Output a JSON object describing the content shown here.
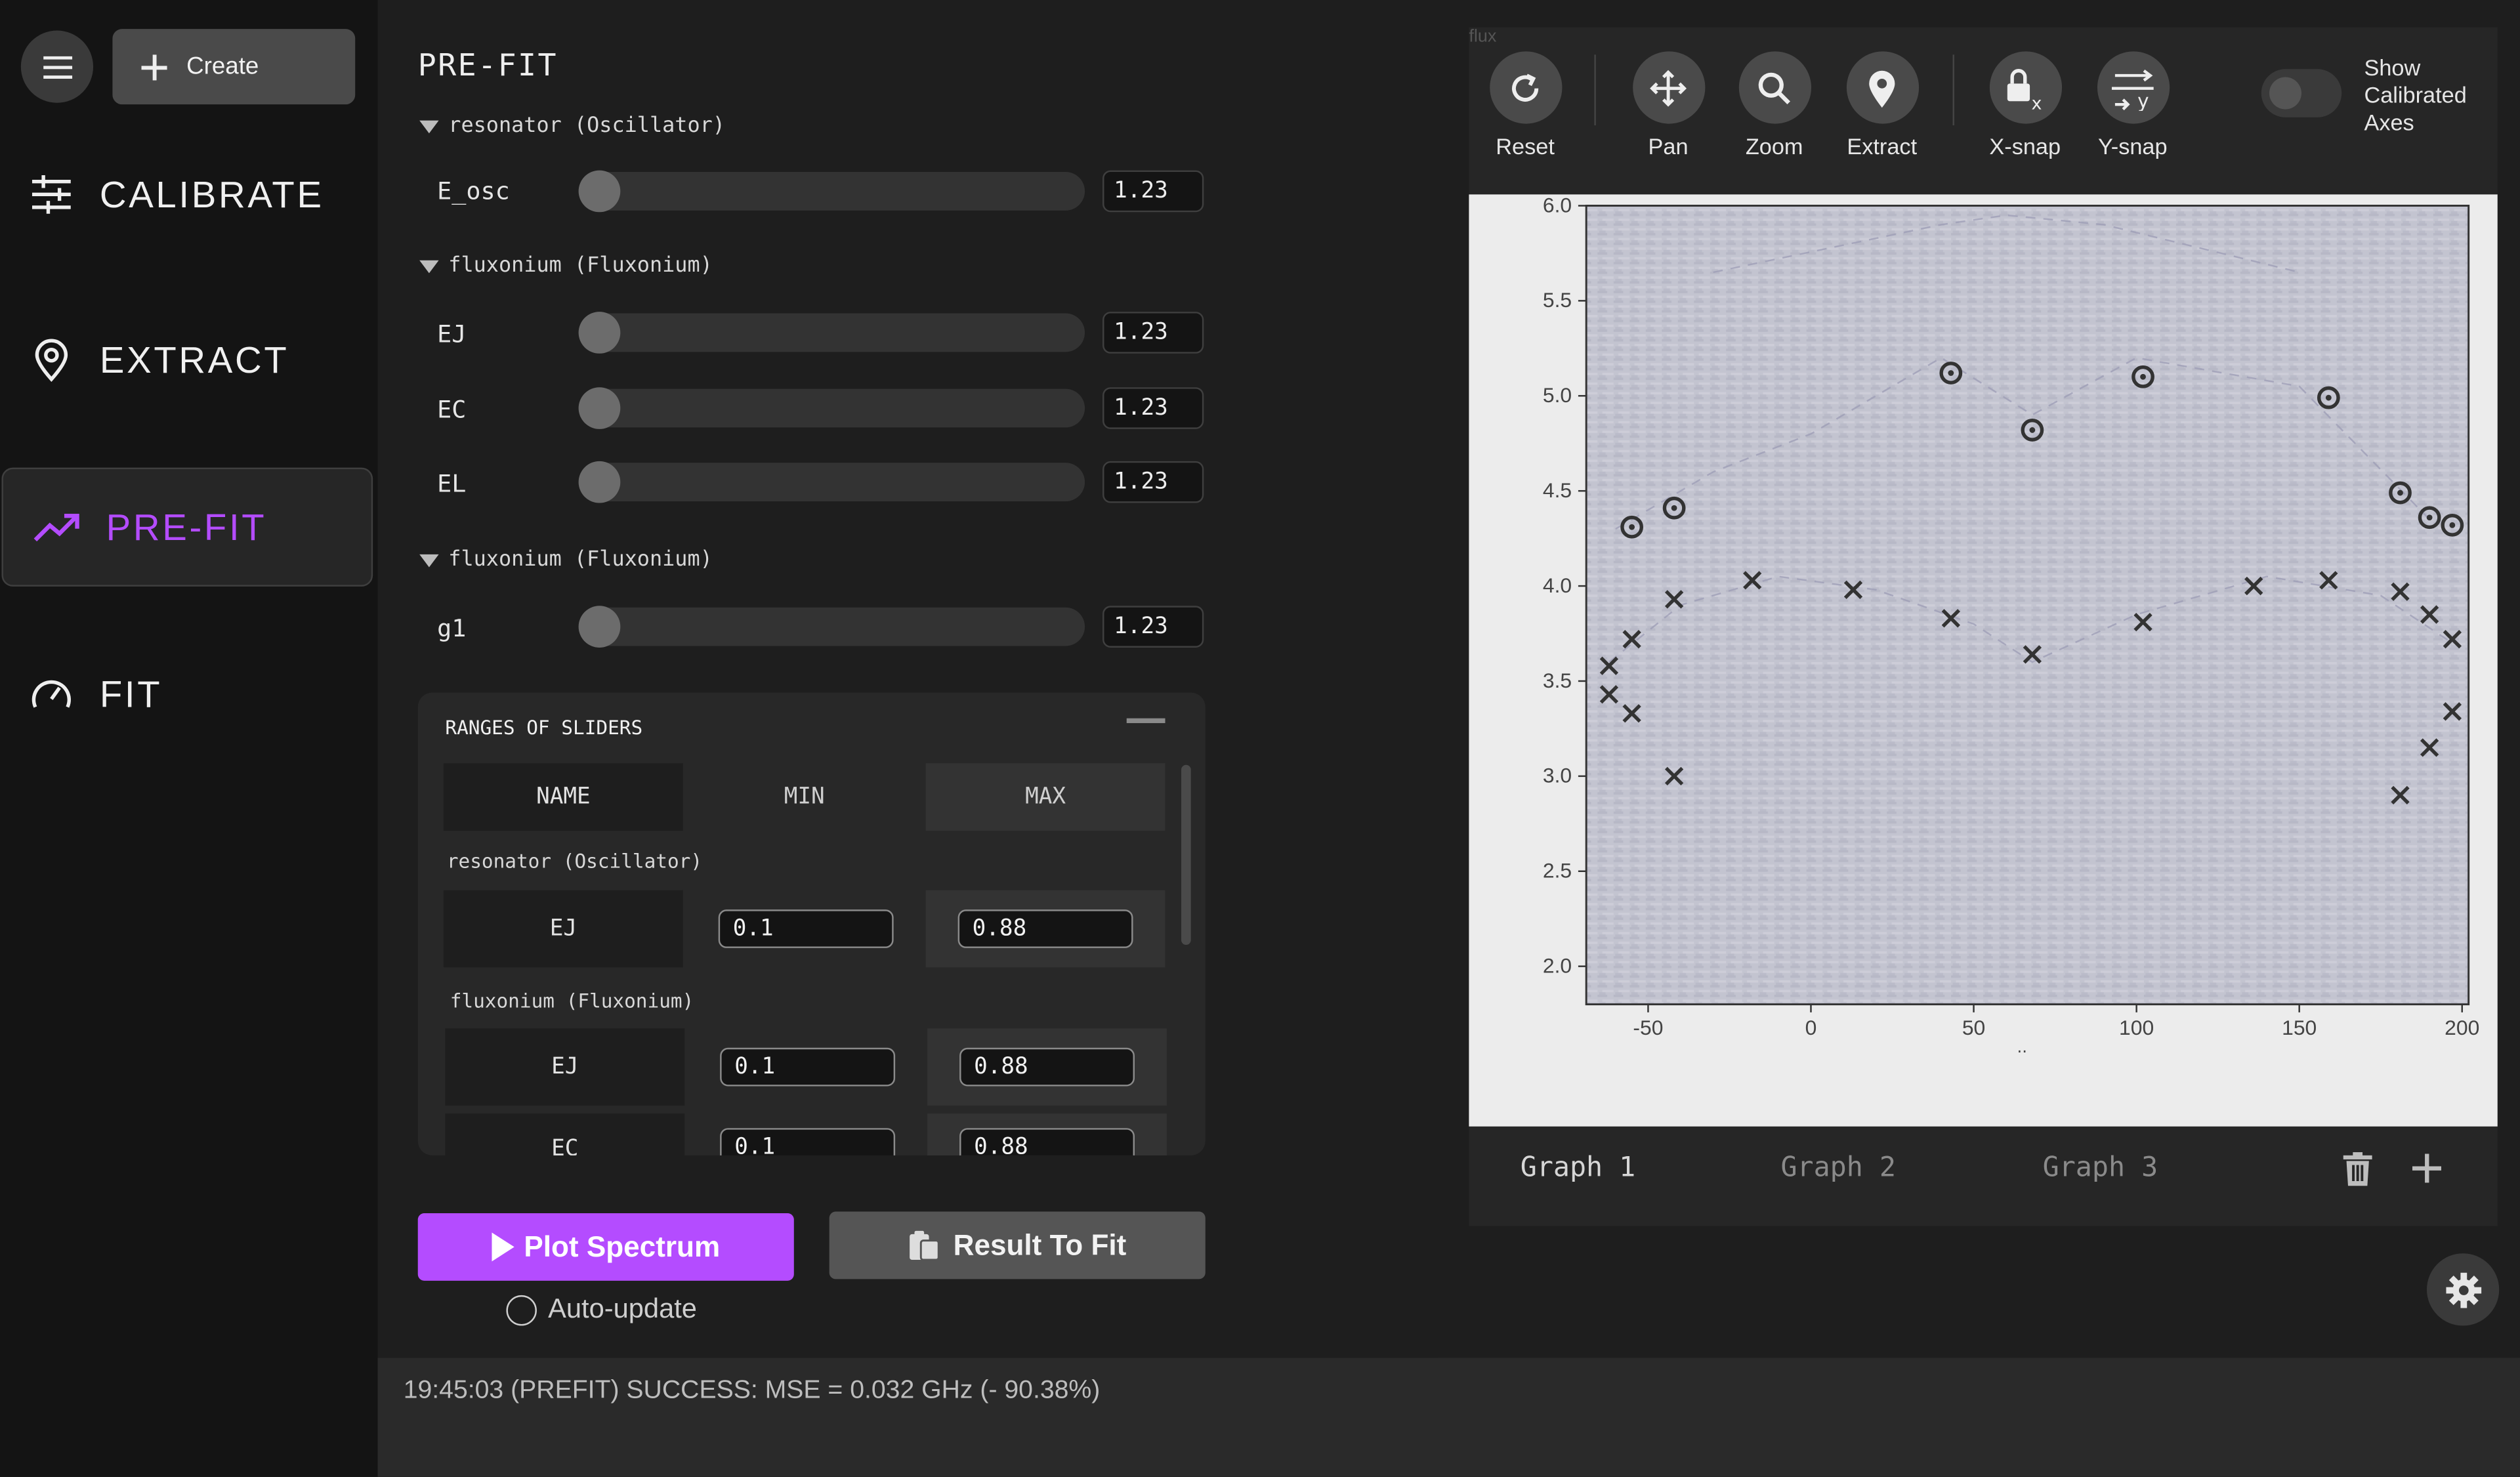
{
  "sidebar": {
    "menu_icon": "hamburger-icon",
    "create_label": "Create",
    "nav": [
      {
        "label": "CALIBRATE",
        "icon": "sliders-icon"
      },
      {
        "label": "EXTRACT",
        "icon": "location-pin-icon"
      },
      {
        "label": "PRE-FIT",
        "icon": "trending-up-icon"
      },
      {
        "label": "FIT",
        "icon": "speedometer-icon"
      }
    ]
  },
  "prefit": {
    "title": "PRE-FIT",
    "groups": [
      {
        "label": "resonator (Oscillator)",
        "params": [
          {
            "name": "E_osc",
            "value": "1.23"
          }
        ]
      },
      {
        "label": "fluxonium (Fluxonium)",
        "params": [
          {
            "name": "EJ",
            "value": "1.23"
          },
          {
            "name": "EC",
            "value": "1.23"
          },
          {
            "name": "EL",
            "value": "1.23"
          }
        ]
      },
      {
        "label": "fluxonium (Fluxonium)",
        "params": [
          {
            "name": "g1",
            "value": "1.23"
          }
        ]
      }
    ],
    "ranges": {
      "title": "RANGES OF SLIDERS",
      "headers": [
        "NAME",
        "MIN",
        "MAX"
      ],
      "sections": [
        {
          "label": "resonator (Oscillator)",
          "rows": [
            {
              "name": "EJ",
              "min": "0.1",
              "max": "0.88"
            }
          ]
        },
        {
          "label": "fluxonium (Fluxonium)",
          "rows": [
            {
              "name": "EJ",
              "min": "0.1",
              "max": "0.88"
            },
            {
              "name": "EC",
              "min": "0.1",
              "max": "0.88"
            }
          ]
        }
      ]
    },
    "plot_button": "Plot Spectrum",
    "result_button": "Result To Fit",
    "auto_update": "Auto-update"
  },
  "graph": {
    "header_label": "flux",
    "toolbar": [
      {
        "label": "Reset",
        "icon": "reset-icon"
      },
      {
        "label": "Pan",
        "icon": "pan-arrows-icon"
      },
      {
        "label": "Zoom",
        "icon": "magnifier-icon"
      },
      {
        "label": "Extract",
        "icon": "location-pin-icon"
      },
      {
        "label": "X-snap",
        "icon": "lock-x-icon"
      },
      {
        "label": "Y-snap",
        "icon": "y-snap-icon"
      }
    ],
    "toggle_label": "Show Calibrated Axes",
    "tabs": [
      "Graph 1",
      "Graph 2",
      "Graph 3"
    ],
    "xlabel_hint": ".."
  },
  "chart_data": {
    "type": "scatter",
    "title": "",
    "xlabel": "",
    "ylabel": "",
    "xlim": [
      -69,
      202
    ],
    "ylim": [
      1.8,
      6.0
    ],
    "xticks": [
      "-50",
      "0",
      "50",
      "100",
      "150",
      "200"
    ],
    "yticks": [
      "2.0",
      "2.5",
      "3.0",
      "3.5",
      "4.0",
      "4.5",
      "5.0",
      "5.5",
      "6.0"
    ],
    "background": "spectrum heatmap",
    "series": [
      {
        "marker": "circle",
        "x": [
          -55,
          -42,
          43,
          68,
          102,
          159,
          181,
          190,
          197
        ],
        "y": [
          4.31,
          4.41,
          5.12,
          4.82,
          5.1,
          4.99,
          4.49,
          4.36,
          4.32
        ]
      },
      {
        "marker": "cross",
        "x": [
          -62,
          -62,
          -55,
          -55,
          -42,
          -42,
          -18,
          13,
          43,
          68,
          102,
          136,
          159,
          181,
          181,
          190,
          190,
          197,
          197
        ],
        "y": [
          3.58,
          3.43,
          3.72,
          3.33,
          3.93,
          3.0,
          4.03,
          3.98,
          3.83,
          3.64,
          3.81,
          4.0,
          4.03,
          3.97,
          2.9,
          3.85,
          3.15,
          3.72,
          3.34
        ]
      }
    ]
  },
  "status": {
    "message": "19:45:03 (PREFIT) SUCCESS: MSE = 0.032 GHz (- 90.38%)"
  },
  "settings_icon": "gear-icon"
}
